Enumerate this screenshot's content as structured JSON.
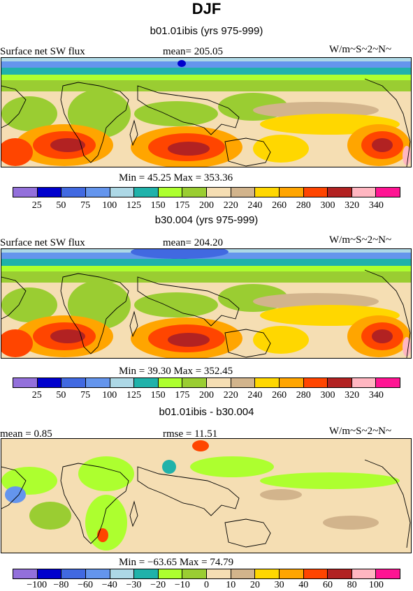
{
  "title": "DJF",
  "colors": {
    "abs": [
      "#9370db",
      "#0000cd",
      "#4169e1",
      "#6495ed",
      "#add8e6",
      "#20b2aa",
      "#adff2f",
      "#9acd32",
      "#f5deb3",
      "#d2b48c",
      "#ffd700",
      "#ffa500",
      "#ff4500",
      "#b22222",
      "#ffb6c1",
      "#ff1493"
    ],
    "diff": [
      "#9370db",
      "#0000cd",
      "#4169e1",
      "#6495ed",
      "#add8e6",
      "#20b2aa",
      "#adff2f",
      "#9acd32",
      "#f5deb3",
      "#d2b48c",
      "#ffd700",
      "#ffa500",
      "#ff4500",
      "#b22222",
      "#ffb6c1",
      "#ff1493"
    ]
  },
  "chart_data": [
    {
      "type": "heatmap",
      "subtitle": "b01.01ibis (yrs 975-999)",
      "variable": "Surface net SW flux",
      "mean_label": "mean= 205.05",
      "units": "W/m~S~2~N~",
      "minmax": "Min =  45.25 Max = 353.36",
      "min": 45.25,
      "max": 353.36,
      "mean": 205.05,
      "levels": [
        "25",
        "50",
        "75",
        "100",
        "125",
        "150",
        "175",
        "200",
        "220",
        "240",
        "260",
        "280",
        "300",
        "320",
        "340"
      ]
    },
    {
      "type": "heatmap",
      "subtitle": "b30.004 (yrs 975-999)",
      "variable": "Surface net SW flux",
      "mean_label": "mean= 204.20",
      "units": "W/m~S~2~N~",
      "minmax": "Min =  39.30 Max = 352.45",
      "min": 39.3,
      "max": 352.45,
      "mean": 204.2,
      "levels": [
        "25",
        "50",
        "75",
        "100",
        "125",
        "150",
        "175",
        "200",
        "220",
        "240",
        "260",
        "280",
        "300",
        "320",
        "340"
      ]
    },
    {
      "type": "heatmap",
      "subtitle": "b01.01ibis - b30.004",
      "mean_label": "mean =    0.85",
      "rmse_label": "rmse =   11.51",
      "units": "W/m~S~2~N~",
      "minmax": "Min = −63.65 Max =  74.79",
      "min": -63.65,
      "max": 74.79,
      "mean": 0.85,
      "rmse": 11.51,
      "levels": [
        "−100",
        "−80",
        "−60",
        "−40",
        "−30",
        "−20",
        "−10",
        "0",
        "10",
        "20",
        "30",
        "40",
        "60",
        "80",
        "100"
      ]
    }
  ]
}
